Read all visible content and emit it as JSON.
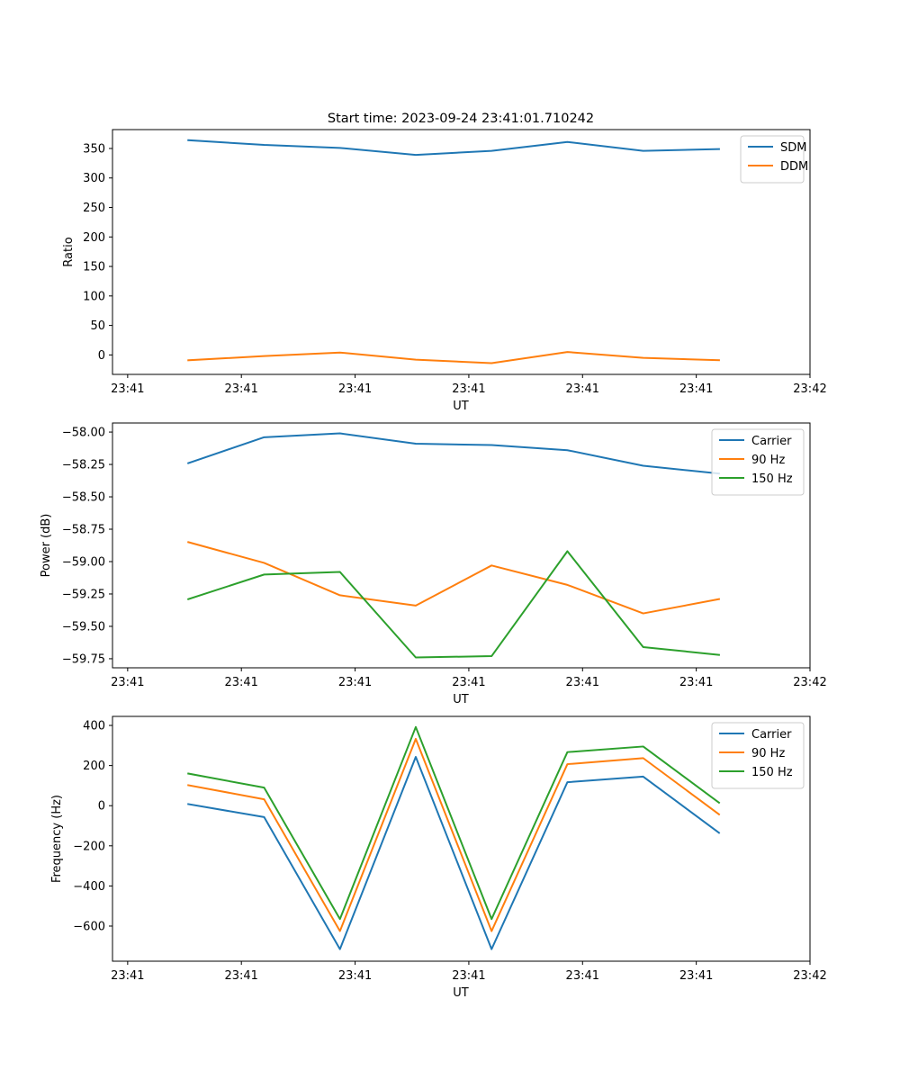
{
  "figure": {
    "title": "Start time: 2023-09-24 23:41:01.710242"
  },
  "colors": {
    "blue": "#1f77b4",
    "orange": "#ff7f0e",
    "green": "#2ca02c"
  },
  "chart_data": [
    {
      "type": "line",
      "title": "Start time: 2023-09-24 23:41:01.710242",
      "xlabel": "UT",
      "ylabel": "Ratio",
      "x": [
        1,
        2,
        3,
        4,
        5,
        6,
        7,
        8
      ],
      "xlim": [
        0,
        9.2
      ],
      "xticks": [
        0.2,
        1.7,
        3.2,
        4.7,
        6.2,
        7.7,
        9.2
      ],
      "xtick_labels": [
        "23:41",
        "23:41",
        "23:41",
        "23:41",
        "23:41",
        "23:41",
        "23:42"
      ],
      "ylim": [
        -33,
        382
      ],
      "yticks": [
        0,
        50,
        100,
        150,
        200,
        250,
        300,
        350
      ],
      "ytick_labels": [
        "0",
        "50",
        "100",
        "150",
        "200",
        "250",
        "300",
        "350"
      ],
      "legend": "top-right",
      "series": [
        {
          "name": "SDM",
          "color": "blue",
          "values": [
            364,
            356,
            351,
            339,
            346,
            361,
            346,
            349
          ]
        },
        {
          "name": "DDM",
          "color": "orange",
          "values": [
            -9,
            -2,
            4,
            -8,
            -14,
            5,
            -5,
            -9
          ]
        }
      ]
    },
    {
      "type": "line",
      "title": "",
      "xlabel": "UT",
      "ylabel": "Power (dB)",
      "x": [
        1,
        2,
        3,
        4,
        5,
        6,
        7,
        8
      ],
      "xlim": [
        0,
        9.2
      ],
      "xticks": [
        0.2,
        1.7,
        3.2,
        4.7,
        6.2,
        7.7,
        9.2
      ],
      "xtick_labels": [
        "23:41",
        "23:41",
        "23:41",
        "23:41",
        "23:41",
        "23:41",
        "23:42"
      ],
      "ylim": [
        -59.82,
        -57.93
      ],
      "yticks": [
        -58.0,
        -58.25,
        -58.5,
        -58.75,
        -59.0,
        -59.25,
        -59.5,
        -59.75
      ],
      "ytick_labels": [
        "−58.00",
        "−58.25",
        "−58.50",
        "−58.75",
        "−59.00",
        "−59.25",
        "−59.50",
        "−59.75"
      ],
      "legend": "top-right",
      "series": [
        {
          "name": "Carrier",
          "color": "blue",
          "values": [
            -58.24,
            -58.04,
            -58.01,
            -58.09,
            -58.1,
            -58.14,
            -58.26,
            -58.32
          ]
        },
        {
          "name": "90 Hz",
          "color": "orange",
          "values": [
            -58.85,
            -59.01,
            -59.26,
            -59.34,
            -59.03,
            -59.18,
            -59.4,
            -59.29
          ]
        },
        {
          "name": "150 Hz",
          "color": "green",
          "values": [
            -59.29,
            -59.1,
            -59.08,
            -59.74,
            -59.73,
            -58.92,
            -59.66,
            -59.72
          ]
        }
      ]
    },
    {
      "type": "line",
      "title": "",
      "xlabel": "UT",
      "ylabel": "Frequency (Hz)",
      "x": [
        1,
        2,
        3,
        4,
        5,
        6,
        7,
        8
      ],
      "xlim": [
        0,
        9.2
      ],
      "xticks": [
        0.2,
        1.7,
        3.2,
        4.7,
        6.2,
        7.7,
        9.2
      ],
      "xtick_labels": [
        "23:41",
        "23:41",
        "23:41",
        "23:41",
        "23:41",
        "23:41",
        "23:42"
      ],
      "ylim": [
        -775,
        445
      ],
      "yticks": [
        -600,
        -400,
        -200,
        0,
        200,
        400
      ],
      "ytick_labels": [
        "−600",
        "−400",
        "−200",
        "0",
        "200",
        "400"
      ],
      "legend": "top-right",
      "series": [
        {
          "name": "Carrier",
          "color": "blue",
          "values": [
            8,
            -57,
            -715,
            243,
            -715,
            117,
            145,
            -135
          ]
        },
        {
          "name": "90 Hz",
          "color": "orange",
          "values": [
            102,
            32,
            -625,
            333,
            -625,
            207,
            237,
            -43
          ]
        },
        {
          "name": "150 Hz",
          "color": "green",
          "values": [
            160,
            90,
            -565,
            392,
            -565,
            267,
            295,
            15
          ]
        }
      ]
    }
  ]
}
